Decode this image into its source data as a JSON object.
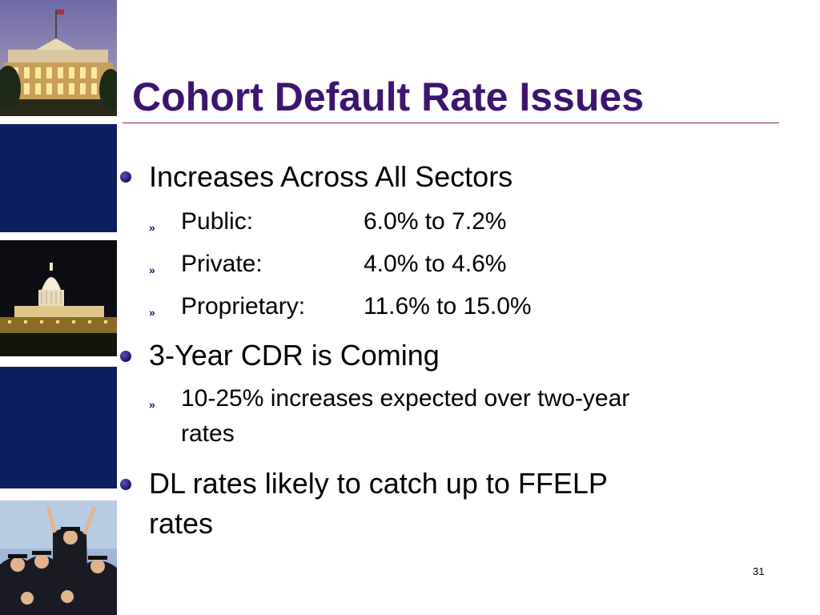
{
  "slide": {
    "title": "Cohort Default Rate Issues",
    "bullets": [
      {
        "text": "Increases Across All Sectors",
        "subs": [
          {
            "label": "Public:",
            "value": "6.0% to 7.2%"
          },
          {
            "label": "Private:",
            "value": "4.0% to 4.6%"
          },
          {
            "label": "Proprietary:",
            "value": "11.6% to 15.0%"
          }
        ]
      },
      {
        "text": "3-Year CDR is Coming",
        "subs": [
          {
            "line1": "10-25% increases expected over two-year",
            "line2": "rates"
          }
        ]
      },
      {
        "text_line1": "DL rates likely to catch up to FFELP",
        "text_line2": "rates"
      }
    ],
    "page_number": "31",
    "sub_bullet_glyph": "»"
  },
  "colors": {
    "title": "#3d1470",
    "rule": "#8a1f6a",
    "sidebar_navy": "#0b1f5e"
  },
  "images": [
    "white-house-photo",
    "capitol-photo",
    "graduates-photo"
  ]
}
